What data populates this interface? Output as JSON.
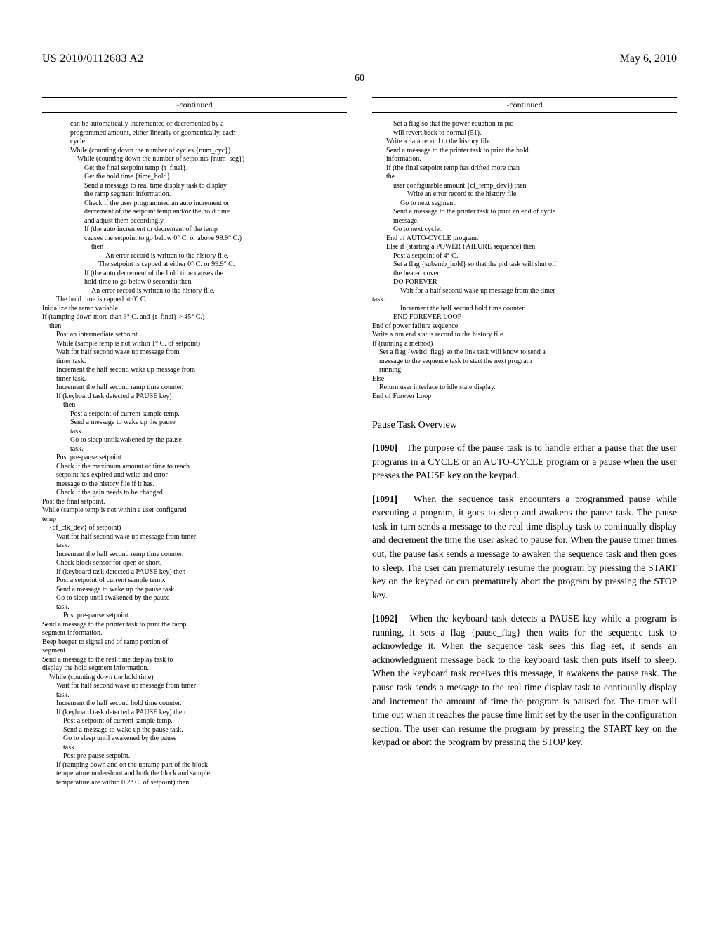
{
  "header": {
    "publication_number": "US 2010/0112683 A2",
    "publication_date": "May 6, 2010",
    "page_number": "60"
  },
  "left_column": {
    "continued_label": "-continued",
    "code": "                can be automatically incremented or decremented by a\n                programmed amount, either linearly or geometrically, each\n                cycle.\n                While (counting down the number of cycles {num_cyc})\n                    While (counting down the number of setpoints {num_seg})\n                        Get the final setpoint temp {t_final}.\n                        Get the hold time {time_hold}.\n                        Send a message to real time display task to display\n                        the ramp segment information.\n                        Check if the user programmed an auto increment or\n                        decrement of the setpoint temp and/or the hold time\n                        and adjust them accordingly.\n                        If (the auto increment or decrement of the temp\n                        causes the setpoint to go below 0° C. or above 99.9° C.)\n                            then\n                                    An error record is written to the history file.\n                                The setpoint is capped at either 0° C. or 99.9° C.\n                        If (the auto decrement of the hold time causes the\n                        hold time to go below 0 seconds) then\n                            An error record is written to the history file.\n        The hold time is capped at 0° C.\nInitialize the ramp variable.\nIf (ramping down more than 3° C. and {t_final} > 45° C.)\n    then\n        Post an intermediate setpoint.\n        While (sample temp is not within 1° C. of setpoint)\n        Wait for half second wake up message from\n        timer task.\n        Increment the half second wake up message from\n        timer task.\n        Increment the half second ramp time counter.\n        If (keyboard task detected a PAUSE key)\n            then\n                Post a setpoint of current sample temp.\n                Send a message to wake up the pause\n                task.\n                Go to sleep untilawakened by the pause\n                task.\n        Post pre-pause setpoint.\n        Check if the maximum amount of time to reach\n        setpoint has expired and write and error\n        message to the history file if it has.\n        Check if the gain needs to be changed.\nPost the final setpoint.\nWhile (sample temp is not within a user configured\ntemp\n    {cf_clk_dev} of setpoint)\n        Wait for half second wake up message from timer\n        task.\n        Increment the half second remp time counter.\n        Check block sensor for open or short.\n        If (keyboard task detected a PAUSE key) then\n        Post a setpoint of current sample temp.\n        Send a message to wake up the pause task.\n        Go to sleep until awakened by the pause\n        task.\n            Post pre-pause setpoint.\nSend a message to the printer task to print the ramp\nsegment information.\nBeep beeper to signal end of ramp portion of\nsegment.\nSend a message to the real time display task to\ndisplay the hold segment information.\n    While (counting down the hold time)\n        Wait for half second wake up message from timer\n        task.\n        Increment the half second hold time counter.\n        If (keyboard task detected a PAUSE key) then\n            Post a setpoint of current sample temp.\n            Send a message to wake up the pause task.\n            Go to sleep until awakened by the pause\n            task.\n            Post pre-pause setpoint.\n        If (ramping down and on the upramp part of the block\n        temperature undershoot and both the block and sample\n        temperature are within 0.2° C. of setpoint) then"
  },
  "right_column": {
    "continued_label": "-continued",
    "code": "            Set a flag so that the power equation in pid\n            will revert back to normal (51).\n        Write a data record to the history file.\n        Send a message to the printer task to print the hold\n        information.\n        If (the final setpoint temp has drifted more than\n        the\n            user configurable amount {cf_temp_dev}) then\n                    Write an error record to the history file.\n                Go to next segment.\n            Send a message to the printer task to print an end of cycle\n            message.\n            Go to next cycle.\n        End of AUTO-CYCLE program.\n        Else if (starting a POWER FAILURE sequence) then\n            Post a setpoint of 4° C.\n            Set a flag {subamb_hold} so that the pid task will shut off\n            the heated cover.\n            DO FOREVER\n                Wait for a half second wake up message from the timer\ntask.\n                Increment the half second hold time counter.\n            END FOREVER LOOP\nEnd of power failure sequence\nWrite a run end status record to the history file.\nIf (running a method)\n    Set a flag {weird_flag} so the link task will know to send a\n    message to the sequence task to start the next program\n    running.\nElse\n    Return user interface to idle state display.\nEnd of Forever Loop",
    "section_title": "Pause Task Overview",
    "para1_num": "[1090]",
    "para1_text": "The purpose of the pause task is to handle either a pause that the user programs in a CYCLE or an AUTO-CYCLE program or a pause when the user presses the PAUSE key on the keypad.",
    "para2_num": "[1091]",
    "para2_text": "When the sequence task encounters a programmed pause while executing a program, it goes to sleep and awakens the pause task. The pause task in turn sends a message to the real time display task to continually display and decrement the time the user asked to pause for. When the pause timer times out, the pause task sends a message to awaken the sequence task and then goes to sleep. The user can prematurely resume the program by pressing the START key on the keypad or can prematurely abort the program by pressing the STOP key.",
    "para3_num": "[1092]",
    "para3_text": "When the keyboard task detects a PAUSE key while a program is running, it sets a flag {pause_flag} then waits for the sequence task to acknowledge it. When the sequence task sees this flag set, it sends an acknowledgment message back to the keyboard task then puts itself to sleep. When the keyboard task receives this message, it awakens the pause task. The pause task sends a message to the real time display task to continually display and increment the amount of time the program is paused for. The timer will time out when it reaches the pause time limit set by the user in the configuration section. The user can resume the program by pressing the START key on the keypad or abort the program by pressing the STOP key."
  }
}
